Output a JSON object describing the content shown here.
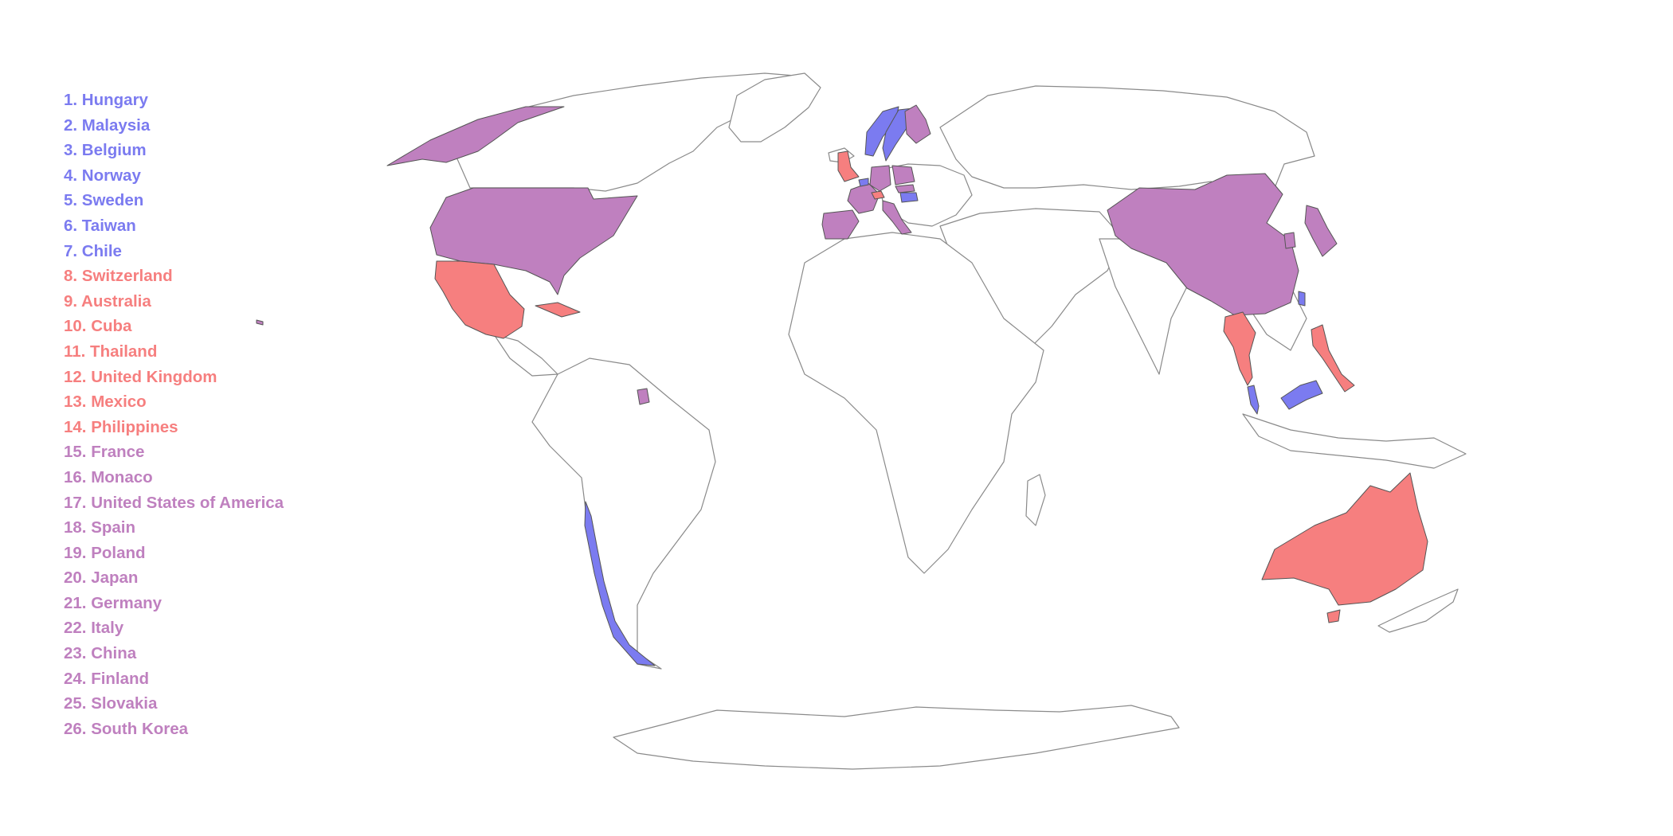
{
  "colors": {
    "blue": "#7b7bf0",
    "red": "#f67f7f",
    "purple": "#bf80bf"
  },
  "legend": [
    {
      "text": "1. Hungary",
      "group": "blue"
    },
    {
      "text": "2. Malaysia",
      "group": "blue"
    },
    {
      "text": "3. Belgium",
      "group": "blue"
    },
    {
      "text": "4. Norway",
      "group": "blue"
    },
    {
      "text": "5. Sweden",
      "group": "blue"
    },
    {
      "text": "6. Taiwan",
      "group": "blue"
    },
    {
      "text": "7. Chile",
      "group": "blue"
    },
    {
      "text": "8. Switzerland",
      "group": "red"
    },
    {
      "text": "9. Australia",
      "group": "red"
    },
    {
      "text": "10. Cuba",
      "group": "red"
    },
    {
      "text": "11. Thailand",
      "group": "red"
    },
    {
      "text": "12. United Kingdom",
      "group": "red"
    },
    {
      "text": "13. Mexico",
      "group": "red"
    },
    {
      "text": "14. Philippines",
      "group": "red"
    },
    {
      "text": "15. France",
      "group": "purple"
    },
    {
      "text": "16. Monaco",
      "group": "purple"
    },
    {
      "text": "17. United States of America",
      "group": "purple"
    },
    {
      "text": "18. Spain",
      "group": "purple"
    },
    {
      "text": "19. Poland",
      "group": "purple"
    },
    {
      "text": "20. Japan",
      "group": "purple"
    },
    {
      "text": "21. Germany",
      "group": "purple"
    },
    {
      "text": "22. Italy",
      "group": "purple"
    },
    {
      "text": "23. China",
      "group": "purple"
    },
    {
      "text": "24. Finland",
      "group": "purple"
    },
    {
      "text": "25. Slovakia",
      "group": "purple"
    },
    {
      "text": "26. South Korea",
      "group": "purple"
    }
  ]
}
